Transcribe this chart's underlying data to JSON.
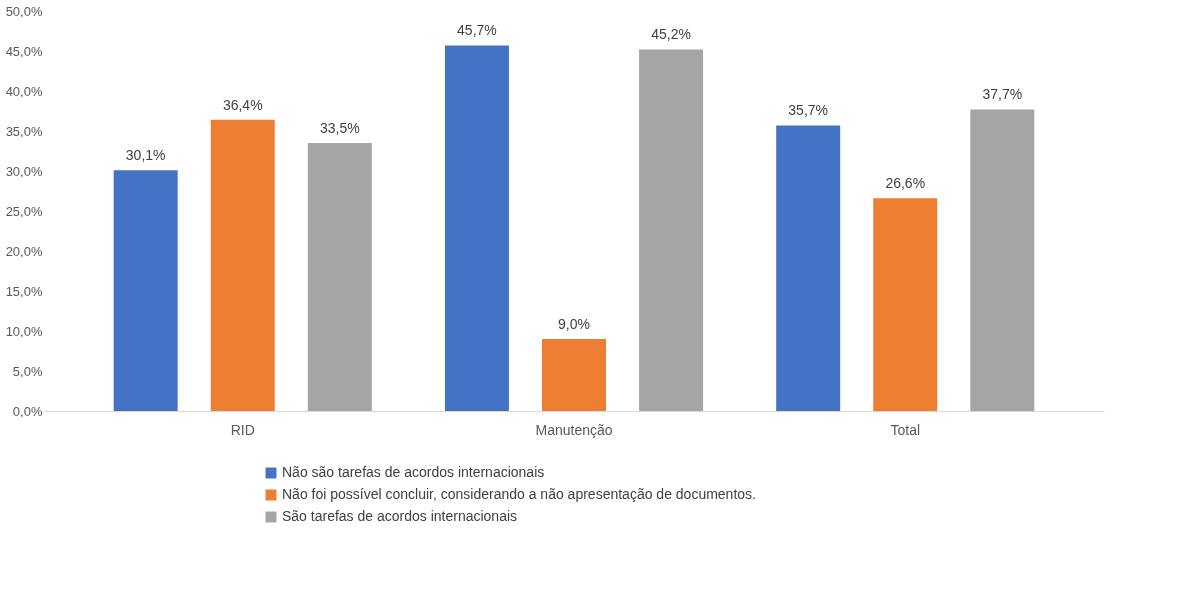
{
  "chart_data": {
    "type": "bar",
    "categories": [
      "RID",
      "Manutenção",
      "Total"
    ],
    "series": [
      {
        "name": "Não são tarefas de acordos internacionais",
        "color": "#4472c4",
        "values": [
          30.1,
          45.7,
          35.7
        ],
        "value_labels": [
          "30,1%",
          "45,7%",
          "35,7%"
        ]
      },
      {
        "name": "Não foi possível concluir, considerando a não apresentação de documentos.",
        "color": "#ed7d31",
        "values": [
          36.4,
          9.0,
          26.6
        ],
        "value_labels": [
          "36,4%",
          "9,0%",
          "26,6%"
        ]
      },
      {
        "name": "São tarefas de acordos internacionais",
        "color": "#a5a5a5",
        "values": [
          33.5,
          45.2,
          37.7
        ],
        "value_labels": [
          "33,5%",
          "45,2%",
          "37,7%"
        ]
      }
    ],
    "ylim": [
      0,
      50
    ],
    "yticks": [
      {
        "value": 0,
        "label": "0,0%"
      },
      {
        "value": 5,
        "label": "5,0%"
      },
      {
        "value": 10,
        "label": "10,0%"
      },
      {
        "value": 15,
        "label": "15,0%"
      },
      {
        "value": 20,
        "label": "20,0%"
      },
      {
        "value": 25,
        "label": "25,0%"
      },
      {
        "value": 30,
        "label": "30,0%"
      },
      {
        "value": 35,
        "label": "35,0%"
      },
      {
        "value": 40,
        "label": "40,0%"
      },
      {
        "value": 45,
        "label": "45,0%"
      },
      {
        "value": 50,
        "label": "50,0%"
      }
    ],
    "grid": false,
    "legend": "bottom"
  }
}
